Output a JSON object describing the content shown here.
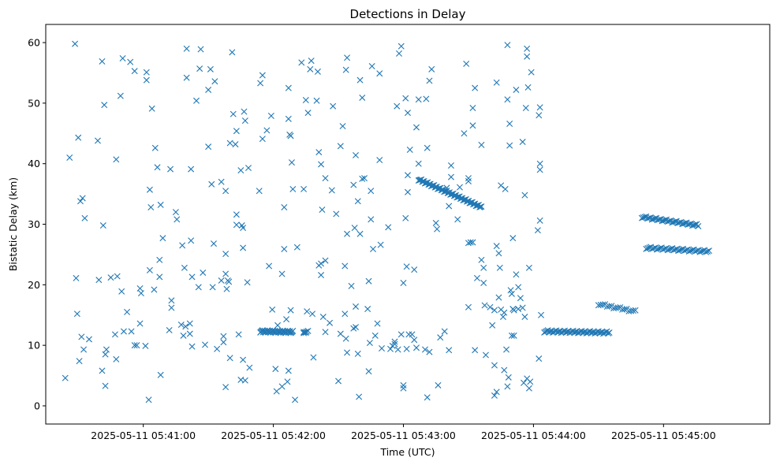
{
  "chart_data": {
    "type": "scatter",
    "title": "Detections in Delay",
    "xlabel": "Time (UTC)",
    "ylabel": "Bistatic Delay (km)",
    "marker": "x",
    "color": "#1f77b4",
    "x_unit": "seconds after 2025-05-11 05:40:00 UTC",
    "xlim": [
      -15,
      319
    ],
    "ylim": [
      -3,
      63
    ],
    "x_ticks": [
      {
        "value": 30,
        "label": "2025-05-11 05:41:00"
      },
      {
        "value": 90,
        "label": "2025-05-11 05:42:00"
      },
      {
        "value": 150,
        "label": "2025-05-11 05:43:00"
      },
      {
        "value": 210,
        "label": "2025-05-11 05:44:00"
      },
      {
        "value": 270,
        "label": "2025-05-11 05:45:00"
      }
    ],
    "y_ticks": [
      0,
      10,
      20,
      30,
      40,
      50,
      60
    ],
    "points": [
      [
        -6,
        4.6
      ],
      [
        -4,
        41
      ],
      [
        -1.5,
        59.8
      ],
      [
        -1,
        21.1
      ],
      [
        -0.5,
        15.2
      ],
      [
        0,
        44.3
      ],
      [
        0.5,
        7.4
      ],
      [
        1,
        33.8
      ],
      [
        1.5,
        11.4
      ],
      [
        2,
        34.3
      ],
      [
        2.5,
        9.3
      ],
      [
        3,
        31
      ],
      [
        5,
        11
      ],
      [
        9,
        43.8
      ],
      [
        9.5,
        20.8
      ],
      [
        11,
        56.9
      ],
      [
        11,
        5.8
      ],
      [
        11.5,
        29.8
      ],
      [
        12,
        49.7
      ],
      [
        12.5,
        3.3
      ],
      [
        12.5,
        8.5
      ],
      [
        13,
        9.3
      ],
      [
        15,
        21.2
      ],
      [
        17,
        11.8
      ],
      [
        17.5,
        7.7
      ],
      [
        17.5,
        40.7
      ],
      [
        18,
        21.4
      ],
      [
        19.5,
        51.2
      ],
      [
        20,
        18.9
      ],
      [
        20.5,
        57.4
      ],
      [
        21,
        12.3
      ],
      [
        22.5,
        15.5
      ],
      [
        24,
        56.8
      ],
      [
        24.5,
        12.3
      ],
      [
        26,
        55.3
      ],
      [
        26,
        10
      ],
      [
        27,
        10
      ],
      [
        28.5,
        13.6
      ],
      [
        28.5,
        19.4
      ],
      [
        29,
        18.6
      ],
      [
        31,
        9.9
      ],
      [
        31.5,
        55.1
      ],
      [
        31.5,
        53.8
      ],
      [
        32.5,
        1
      ],
      [
        33,
        35.7
      ],
      [
        33,
        22.4
      ],
      [
        33.5,
        32.8
      ],
      [
        34,
        49.1
      ],
      [
        35,
        19.2
      ],
      [
        35.5,
        42.6
      ],
      [
        36.5,
        39.4
      ],
      [
        37.5,
        21.3
      ],
      [
        37.5,
        24.1
      ],
      [
        38,
        5.1
      ],
      [
        38,
        33.2
      ],
      [
        39,
        27.7
      ],
      [
        42,
        12.5
      ],
      [
        42.5,
        39.1
      ],
      [
        43,
        17.4
      ],
      [
        43,
        16.2
      ],
      [
        45,
        32
      ],
      [
        45.5,
        30.8
      ],
      [
        47.5,
        13.4
      ],
      [
        48,
        26.5
      ],
      [
        48.5,
        11.6
      ],
      [
        49,
        22.8
      ],
      [
        49.5,
        13.1
      ],
      [
        50,
        54.2
      ],
      [
        50,
        59
      ],
      [
        51.5,
        11.9
      ],
      [
        51.5,
        13.6
      ],
      [
        52,
        39.1
      ],
      [
        52,
        27.3
      ],
      [
        52.5,
        21.3
      ],
      [
        52.5,
        9.8
      ],
      [
        54.5,
        50.4
      ],
      [
        55.5,
        19.6
      ],
      [
        56,
        55.7
      ],
      [
        56.5,
        58.9
      ],
      [
        57.5,
        22
      ],
      [
        58.5,
        10.1
      ],
      [
        60,
        42.8
      ],
      [
        60,
        52.2
      ],
      [
        61,
        55.6
      ],
      [
        61.5,
        36.6
      ],
      [
        62,
        19.6
      ],
      [
        62.5,
        26.8
      ],
      [
        63,
        53.6
      ],
      [
        64,
        9.4
      ],
      [
        66,
        37
      ],
      [
        66,
        20.7
      ],
      [
        67,
        11.5
      ],
      [
        67,
        10.5
      ],
      [
        68,
        3.1
      ],
      [
        68,
        25.1
      ],
      [
        68,
        21.8
      ],
      [
        68,
        35.5
      ],
      [
        68.5,
        19.3
      ],
      [
        69,
        20.7
      ],
      [
        69.5,
        20.5
      ],
      [
        70,
        7.9
      ],
      [
        70,
        43.4
      ],
      [
        71,
        58.4
      ],
      [
        71.5,
        48.2
      ],
      [
        72.5,
        43.2
      ],
      [
        73,
        31.6
      ],
      [
        73,
        29.9
      ],
      [
        73,
        45.4
      ],
      [
        74,
        11.8
      ],
      [
        75,
        38.9
      ],
      [
        75,
        4.3
      ],
      [
        75.5,
        29.8
      ],
      [
        76,
        26.1
      ],
      [
        76,
        7.6
      ],
      [
        76,
        29.4
      ],
      [
        76.5,
        48.6
      ],
      [
        77,
        4.2
      ],
      [
        77,
        47.1
      ],
      [
        78,
        20.4
      ],
      [
        78.5,
        39.3
      ],
      [
        79,
        6.3
      ],
      [
        83.5,
        35.5
      ],
      [
        84,
        53.3
      ],
      [
        85,
        54.6
      ],
      [
        85,
        44.1
      ],
      [
        87,
        45.5
      ],
      [
        88,
        23.1
      ],
      [
        89,
        47.9
      ],
      [
        89.5,
        15.9
      ],
      [
        91,
        6.1
      ],
      [
        91.5,
        2.4
      ],
      [
        92,
        13.3
      ],
      [
        94,
        21.8
      ],
      [
        94,
        3.2
      ],
      [
        95,
        32.8
      ],
      [
        95,
        25.9
      ],
      [
        96,
        14.3
      ],
      [
        96.5,
        4
      ],
      [
        97,
        5.8
      ],
      [
        97,
        52.5
      ],
      [
        97,
        47.4
      ],
      [
        97.5,
        44.8
      ],
      [
        98,
        44.6
      ],
      [
        98,
        15.8
      ],
      [
        98.5,
        40.2
      ],
      [
        99,
        35.8
      ],
      [
        100,
        1
      ],
      [
        101,
        26.2
      ],
      [
        103,
        56.7
      ],
      [
        104,
        35.8
      ],
      [
        104,
        12.2
      ],
      [
        105,
        50.5
      ],
      [
        105,
        12.1
      ],
      [
        105.5,
        15.6
      ],
      [
        106,
        48.4
      ],
      [
        107,
        55.6
      ],
      [
        107.5,
        57
      ],
      [
        108,
        15.2
      ],
      [
        108.5,
        8
      ],
      [
        110,
        50.4
      ],
      [
        110.5,
        55.2
      ],
      [
        111,
        41.9
      ],
      [
        111,
        23.2
      ],
      [
        112,
        39.9
      ],
      [
        112,
        23.5
      ],
      [
        112,
        21.6
      ],
      [
        112.5,
        32.4
      ],
      [
        113,
        14.7
      ],
      [
        114,
        37.6
      ],
      [
        114,
        24
      ],
      [
        114,
        12.2
      ],
      [
        116,
        13.7
      ],
      [
        117,
        35.6
      ],
      [
        117.5,
        49.5
      ],
      [
        119,
        31.7
      ],
      [
        120,
        4.1
      ],
      [
        121,
        42.9
      ],
      [
        121,
        11.9
      ],
      [
        122,
        46.2
      ],
      [
        123,
        15.2
      ],
      [
        123,
        23.1
      ],
      [
        123.5,
        11.1
      ],
      [
        123.5,
        55.5
      ],
      [
        124,
        57.5
      ],
      [
        124,
        8.8
      ],
      [
        124,
        28.4
      ],
      [
        126,
        19.8
      ],
      [
        127,
        36.5
      ],
      [
        127,
        12.8
      ],
      [
        127.5,
        29.4
      ],
      [
        128,
        13
      ],
      [
        128,
        41.4
      ],
      [
        128,
        16.4
      ],
      [
        129,
        33.8
      ],
      [
        129,
        8.6
      ],
      [
        129.5,
        1.5
      ],
      [
        130,
        28.4
      ],
      [
        130,
        53.8
      ],
      [
        131,
        37.5
      ],
      [
        131,
        50.9
      ],
      [
        132,
        37.6
      ],
      [
        133.5,
        16
      ],
      [
        134,
        5.7
      ],
      [
        134,
        20.6
      ],
      [
        134.5,
        10.4
      ],
      [
        135,
        30.8
      ],
      [
        135,
        35.5
      ],
      [
        135.5,
        56.1
      ],
      [
        136,
        25.9
      ],
      [
        137,
        11.6
      ],
      [
        138,
        13.6
      ],
      [
        139,
        54.9
      ],
      [
        139,
        40.6
      ],
      [
        139.5,
        26.6
      ],
      [
        140,
        9.5
      ],
      [
        143,
        29.5
      ],
      [
        144,
        9.4
      ],
      [
        145,
        9.9
      ],
      [
        146,
        10.6
      ],
      [
        146,
        10.2
      ],
      [
        147,
        49.5
      ],
      [
        147.5,
        9.3
      ],
      [
        148,
        58.2
      ],
      [
        149,
        59.4
      ],
      [
        149,
        11.8
      ],
      [
        150,
        20.3
      ],
      [
        150,
        3.4
      ],
      [
        150,
        2.9
      ],
      [
        151,
        50.8
      ],
      [
        151,
        31
      ],
      [
        151.5,
        23
      ],
      [
        151.5,
        9.4
      ],
      [
        152,
        48.4
      ],
      [
        152,
        35.3
      ],
      [
        152,
        38.1
      ],
      [
        152.5,
        11.8
      ],
      [
        153,
        42.3
      ],
      [
        154,
        11.8
      ],
      [
        155,
        22.5
      ],
      [
        155,
        10.9
      ],
      [
        156,
        9.6
      ],
      [
        156,
        46
      ],
      [
        157,
        40
      ],
      [
        157,
        50.6
      ],
      [
        160,
        9.3
      ],
      [
        160.5,
        50.7
      ],
      [
        161,
        42.6
      ],
      [
        161,
        1.4
      ],
      [
        162,
        53.7
      ],
      [
        162,
        8.9
      ],
      [
        163,
        55.6
      ],
      [
        165,
        30.2
      ],
      [
        165.5,
        29.2
      ],
      [
        166,
        3.4
      ],
      [
        167,
        11.3
      ],
      [
        169,
        12.3
      ],
      [
        170,
        36
      ],
      [
        171,
        33
      ],
      [
        171,
        9.2
      ],
      [
        172,
        39.7
      ],
      [
        172,
        37.8
      ],
      [
        175,
        30.8
      ],
      [
        176,
        36.1
      ],
      [
        178,
        45
      ],
      [
        179,
        56.5
      ],
      [
        180,
        37.6
      ],
      [
        180,
        37.1
      ],
      [
        180,
        26.9
      ],
      [
        180,
        16.3
      ],
      [
        181,
        27
      ],
      [
        182,
        49.2
      ],
      [
        182,
        46.3
      ],
      [
        182,
        27
      ],
      [
        183,
        52.5
      ],
      [
        183,
        9.2
      ],
      [
        184,
        21.1
      ],
      [
        186,
        43.1
      ],
      [
        186,
        24.1
      ],
      [
        187,
        22.8
      ],
      [
        187,
        20.3
      ],
      [
        187.5,
        16.6
      ],
      [
        188,
        8.4
      ],
      [
        190,
        16.3
      ],
      [
        191,
        13.3
      ],
      [
        192,
        1.7
      ],
      [
        192,
        15.8
      ],
      [
        192,
        6.7
      ],
      [
        193,
        2.3
      ],
      [
        193,
        53.4
      ],
      [
        193,
        26.4
      ],
      [
        194,
        17.9
      ],
      [
        194,
        25.2
      ],
      [
        194.5,
        22.8
      ],
      [
        195,
        15.9
      ],
      [
        195,
        36.4
      ],
      [
        196,
        14.7
      ],
      [
        196.5,
        5.9
      ],
      [
        196.5,
        15.4
      ],
      [
        197,
        35.8
      ],
      [
        197.5,
        9.3
      ],
      [
        198,
        59.6
      ],
      [
        198,
        50.6
      ],
      [
        198,
        3.2
      ],
      [
        198.5,
        4.7
      ],
      [
        199,
        46.6
      ],
      [
        199,
        43
      ],
      [
        199.5,
        19.1
      ],
      [
        200,
        18.5
      ],
      [
        200,
        11.6
      ],
      [
        200.5,
        27.7
      ],
      [
        200.5,
        16
      ],
      [
        201,
        11.6
      ],
      [
        201,
        15.8
      ],
      [
        202,
        52.2
      ],
      [
        202,
        21.7
      ],
      [
        203,
        19.6
      ],
      [
        203,
        16
      ],
      [
        204,
        17.8
      ],
      [
        205,
        43.6
      ],
      [
        205,
        16.2
      ],
      [
        205.5,
        3.8
      ],
      [
        206,
        34.8
      ],
      [
        206,
        14.7
      ],
      [
        206.5,
        49.2
      ],
      [
        207,
        4.5
      ],
      [
        207,
        57.7
      ],
      [
        207,
        59
      ],
      [
        207.5,
        52.6
      ],
      [
        208,
        2.9
      ],
      [
        208,
        22.8
      ],
      [
        208.5,
        4
      ],
      [
        209,
        55.1
      ],
      [
        212,
        29
      ],
      [
        212.5,
        7.8
      ],
      [
        212.5,
        48
      ],
      [
        213,
        49.3
      ],
      [
        213,
        30.6
      ],
      [
        213,
        40
      ],
      [
        213,
        39
      ],
      [
        213.5,
        15
      ]
    ],
    "clusters": [
      {
        "x0": 84,
        "x1": 99,
        "y0": 12.3,
        "y1": 12.2,
        "n": 46
      },
      {
        "x0": 104,
        "x1": 106,
        "y0": 12.2,
        "y1": 12.2,
        "n": 4
      },
      {
        "x0": 215,
        "x1": 245,
        "y0": 12.3,
        "y1": 12.1,
        "n": 55
      },
      {
        "x0": 157,
        "x1": 186,
        "y0": 37.4,
        "y1": 32.8,
        "n": 70
      },
      {
        "x0": 240,
        "x1": 257,
        "y0": 16.8,
        "y1": 15.6,
        "n": 18
      },
      {
        "x0": 260,
        "x1": 286,
        "y0": 31.2,
        "y1": 29.8,
        "n": 40
      },
      {
        "x0": 262,
        "x1": 291,
        "y0": 26.1,
        "y1": 25.5,
        "n": 42
      }
    ]
  }
}
